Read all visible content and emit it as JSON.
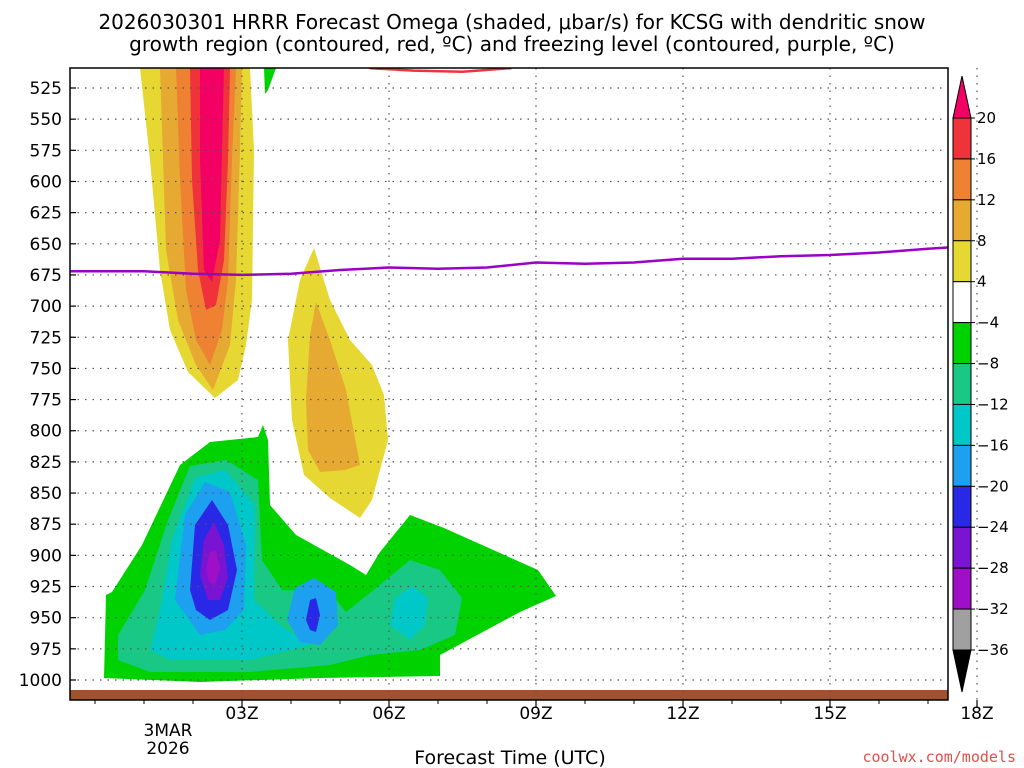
{
  "chart_data": {
    "type": "heatmap",
    "title_lines": [
      "2026030301 HRRR Forecast Omega (shaded, μbar/s) for KCSG with dendritic snow",
      "growth region (contoured, red, ºC) and freezing level (contoured, purple, ºC)"
    ],
    "xlabel": "Forecast Time (UTC)",
    "x_ticks": [
      "03Z",
      "06Z",
      "09Z",
      "12Z",
      "15Z",
      "18Z"
    ],
    "x_tick_date": [
      "3MAR",
      "2026"
    ],
    "x_range_hours": [
      0,
      18
    ],
    "y_ticks": [
      525,
      550,
      575,
      600,
      625,
      650,
      675,
      700,
      725,
      750,
      775,
      800,
      825,
      850,
      875,
      900,
      925,
      950,
      975,
      1000
    ],
    "y_range_hpa": [
      510,
      1010
    ],
    "grid": true,
    "colorbar": {
      "labels": [
        "20",
        "16",
        "12",
        "8",
        "4",
        "−4",
        "−8",
        "−12",
        "−16",
        "−20",
        "−24",
        "−28",
        "−32",
        "−36"
      ],
      "colors": [
        "#f20064",
        "#f0323a",
        "#ee8232",
        "#e6aa32",
        "#e6d732",
        "#ffffff",
        "#00d200",
        "#18c884",
        "#00c8c8",
        "#1ea0f0",
        "#2828e6",
        "#7814d2",
        "#a00fc8",
        "#a0a0a0",
        "#000000"
      ]
    },
    "freezing_level": {
      "color": "#9b00c8",
      "hours": [
        0,
        1,
        2,
        3,
        4,
        5,
        6,
        7,
        8,
        9,
        10,
        11,
        12,
        13,
        14,
        15,
        16,
        17,
        18
      ],
      "pressure_hpa": [
        672,
        672,
        674,
        675,
        674,
        671,
        669,
        670,
        669,
        665,
        666,
        665,
        662,
        662,
        660,
        659,
        657,
        654,
        653
      ]
    },
    "dgz_contour": {
      "color": "#f0323a",
      "hours": [
        5.6,
        6.5,
        7.5,
        8.5
      ],
      "pressure_hpa": [
        509,
        511,
        512,
        509
      ]
    },
    "terrain": {
      "color": "#a0522d",
      "pressure_hpa": 1008
    }
  },
  "credit": "coolwx.com/models"
}
